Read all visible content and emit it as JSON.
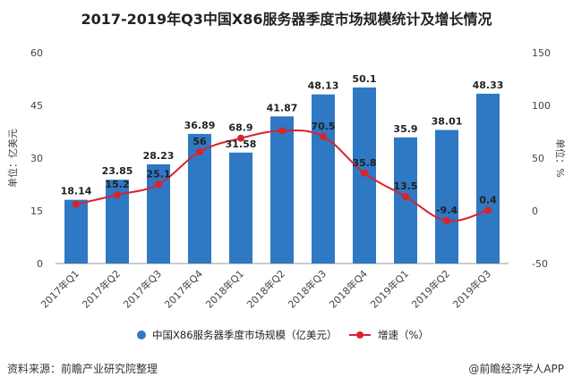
{
  "footer": {
    "source": "资料来源：前瞻产业研究院整理",
    "brand": "@前瞻经济学人APP"
  },
  "colors": {
    "bar": "#2f78c4",
    "line": "#d9232d",
    "grid": "#dddddd"
  },
  "chart_data": {
    "type": "bar+line",
    "title": "2017-2019年Q3中国X86服务器季度市场规模统计及增长情况",
    "categories": [
      "2017年Q1",
      "2017年Q2",
      "2017年Q3",
      "2017年Q4",
      "2018年Q1",
      "2018年Q2",
      "2018年Q3",
      "2018年Q4",
      "2019年Q1",
      "2019年Q2",
      "2019年Q3"
    ],
    "series": [
      {
        "name": "中国X86服务器季度市场规模（亿美元）",
        "type": "bar",
        "axis": "left",
        "values": [
          18.14,
          23.85,
          28.23,
          36.89,
          31.58,
          41.87,
          48.13,
          50.1,
          35.9,
          38.01,
          48.33
        ]
      },
      {
        "name": "增速（%）",
        "type": "line",
        "axis": "right",
        "values": [
          6.2,
          15.2,
          25.1,
          56,
          68.9,
          76,
          70.5,
          35.8,
          13.5,
          -9.4,
          0.4
        ],
        "labels": [
          "",
          "15.2",
          "25.1",
          "56",
          "68.9",
          "",
          "70.5",
          "35.8",
          "13.5",
          "-9.4",
          "0.4"
        ]
      }
    ],
    "ylabel_left": "单位：亿美元",
    "ylabel_right": "单位：%",
    "ylim_left": [
      0,
      60
    ],
    "yticks_left": [
      0,
      15,
      30,
      45,
      60
    ],
    "ylim_right": [
      -50,
      150
    ],
    "yticks_right": [
      -50,
      0,
      50,
      100,
      150
    ],
    "grid": false,
    "legend_position": "bottom"
  }
}
